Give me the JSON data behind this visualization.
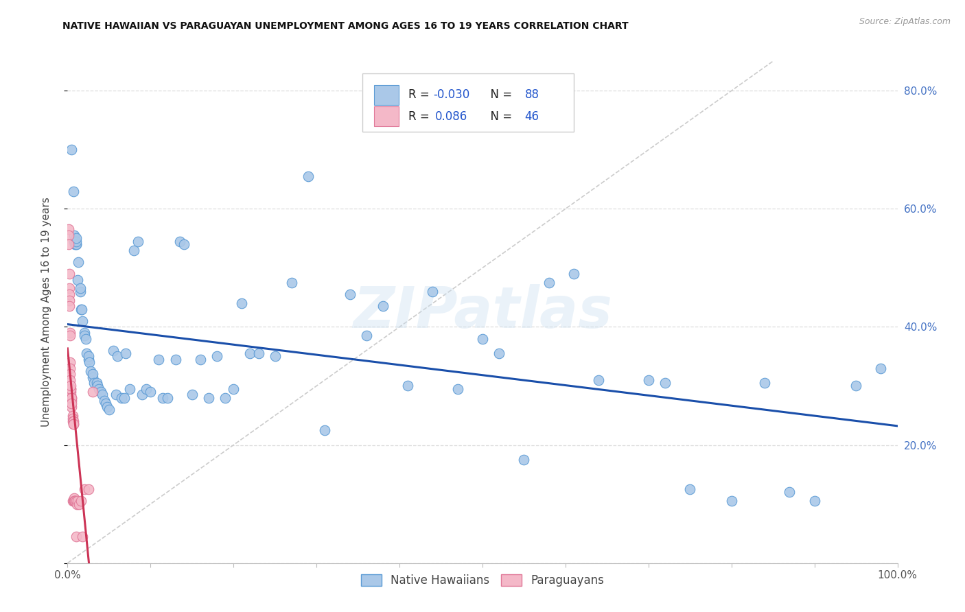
{
  "title": "NATIVE HAWAIIAN VS PARAGUAYAN UNEMPLOYMENT AMONG AGES 16 TO 19 YEARS CORRELATION CHART",
  "source": "Source: ZipAtlas.com",
  "ylabel": "Unemployment Among Ages 16 to 19 years",
  "xlim": [
    0,
    1.0
  ],
  "ylim": [
    0,
    0.85
  ],
  "background_color": "#ffffff",
  "blue_fill": "#aac8e8",
  "blue_edge": "#5b9bd5",
  "pink_fill": "#f4b8c8",
  "pink_edge": "#e07898",
  "trend_blue": "#1a4faa",
  "trend_pink": "#cc3355",
  "diag_color": "#cccccc",
  "grid_color": "#dddddd",
  "right_tick_color": "#4472c4",
  "R_blue": -0.03,
  "N_blue": 88,
  "R_pink": 0.086,
  "N_pink": 46,
  "legend_label_blue": "Native Hawaiians",
  "legend_label_pink": "Paraguayans",
  "watermark": "ZIPatlas",
  "blue_x": [
    0.005,
    0.007,
    0.008,
    0.008,
    0.009,
    0.01,
    0.01,
    0.01,
    0.01,
    0.012,
    0.013,
    0.015,
    0.015,
    0.016,
    0.017,
    0.018,
    0.02,
    0.02,
    0.022,
    0.023,
    0.025,
    0.025,
    0.026,
    0.028,
    0.03,
    0.03,
    0.032,
    0.035,
    0.036,
    0.038,
    0.04,
    0.042,
    0.044,
    0.046,
    0.048,
    0.05,
    0.055,
    0.058,
    0.06,
    0.065,
    0.068,
    0.07,
    0.075,
    0.08,
    0.085,
    0.09,
    0.095,
    0.1,
    0.11,
    0.115,
    0.12,
    0.13,
    0.135,
    0.14,
    0.15,
    0.16,
    0.17,
    0.18,
    0.19,
    0.2,
    0.21,
    0.22,
    0.23,
    0.25,
    0.27,
    0.29,
    0.31,
    0.34,
    0.36,
    0.38,
    0.41,
    0.44,
    0.47,
    0.5,
    0.52,
    0.55,
    0.58,
    0.61,
    0.64,
    0.7,
    0.72,
    0.75,
    0.8,
    0.84,
    0.87,
    0.9,
    0.95,
    0.98
  ],
  "blue_y": [
    0.7,
    0.63,
    0.545,
    0.555,
    0.54,
    0.54,
    0.54,
    0.545,
    0.55,
    0.48,
    0.51,
    0.46,
    0.465,
    0.43,
    0.43,
    0.41,
    0.39,
    0.385,
    0.38,
    0.355,
    0.345,
    0.35,
    0.34,
    0.325,
    0.315,
    0.32,
    0.305,
    0.305,
    0.3,
    0.295,
    0.29,
    0.285,
    0.275,
    0.27,
    0.265,
    0.26,
    0.36,
    0.285,
    0.35,
    0.28,
    0.28,
    0.355,
    0.295,
    0.53,
    0.545,
    0.285,
    0.295,
    0.29,
    0.345,
    0.28,
    0.28,
    0.345,
    0.545,
    0.54,
    0.285,
    0.345,
    0.28,
    0.35,
    0.28,
    0.295,
    0.44,
    0.355,
    0.355,
    0.35,
    0.475,
    0.655,
    0.225,
    0.455,
    0.385,
    0.435,
    0.3,
    0.46,
    0.295,
    0.38,
    0.355,
    0.175,
    0.475,
    0.49,
    0.31,
    0.31,
    0.305,
    0.125,
    0.105,
    0.305,
    0.12,
    0.105,
    0.3,
    0.33
  ],
  "pink_x": [
    0.001,
    0.001,
    0.001,
    0.002,
    0.002,
    0.002,
    0.002,
    0.002,
    0.003,
    0.003,
    0.003,
    0.003,
    0.003,
    0.003,
    0.004,
    0.004,
    0.004,
    0.004,
    0.004,
    0.005,
    0.005,
    0.005,
    0.005,
    0.005,
    0.006,
    0.006,
    0.006,
    0.006,
    0.007,
    0.007,
    0.007,
    0.007,
    0.008,
    0.008,
    0.009,
    0.009,
    0.01,
    0.01,
    0.011,
    0.012,
    0.014,
    0.016,
    0.018,
    0.02,
    0.025,
    0.03
  ],
  "pink_y": [
    0.565,
    0.555,
    0.54,
    0.49,
    0.465,
    0.455,
    0.445,
    0.435,
    0.39,
    0.385,
    0.34,
    0.33,
    0.32,
    0.31,
    0.295,
    0.29,
    0.285,
    0.295,
    0.3,
    0.28,
    0.275,
    0.28,
    0.265,
    0.27,
    0.25,
    0.245,
    0.24,
    0.105,
    0.24,
    0.235,
    0.235,
    0.105,
    0.11,
    0.105,
    0.105,
    0.105,
    0.105,
    0.045,
    0.1,
    0.105,
    0.1,
    0.105,
    0.045,
    0.125,
    0.125,
    0.29
  ]
}
